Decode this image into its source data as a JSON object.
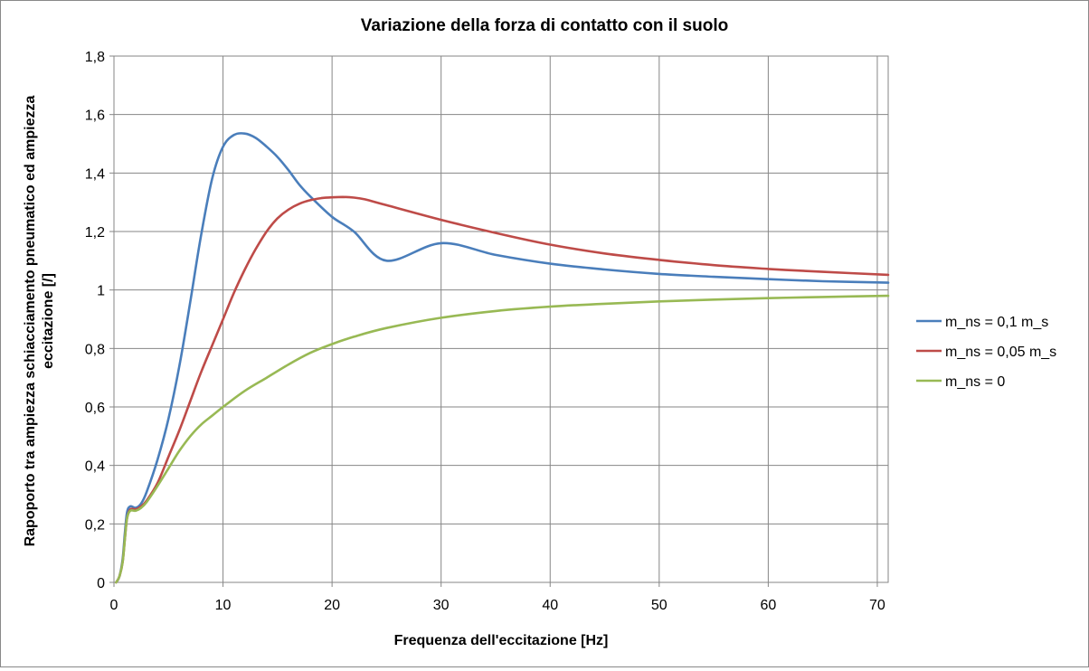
{
  "chart_data": {
    "type": "line",
    "title": "Variazione della forza di contatto con il suolo",
    "xlabel": "Frequenza dell'eccitazione  [Hz]",
    "ylabel_line1": "Rapoporto tra ampiezza schiacciamento  pneumatico ed ampiezza",
    "ylabel_line2": "eccitazione  [/]",
    "xlim": [
      0,
      71
    ],
    "ylim": [
      0,
      1.8
    ],
    "xticks": [
      {
        "value": 0,
        "label": "0"
      },
      {
        "value": 10,
        "label": "10"
      },
      {
        "value": 20,
        "label": "20"
      },
      {
        "value": 30,
        "label": "30"
      },
      {
        "value": 40,
        "label": "40"
      },
      {
        "value": 50,
        "label": "50"
      },
      {
        "value": 60,
        "label": "60"
      },
      {
        "value": 70,
        "label": "70"
      }
    ],
    "yticks": [
      {
        "value": 0,
        "label": "0"
      },
      {
        "value": 0.2,
        "label": "0,2"
      },
      {
        "value": 0.4,
        "label": "0,4"
      },
      {
        "value": 0.6,
        "label": "0,6"
      },
      {
        "value": 0.8,
        "label": "0,8"
      },
      {
        "value": 1.0,
        "label": "1"
      },
      {
        "value": 1.2,
        "label": "1,2"
      },
      {
        "value": 1.4,
        "label": "1,4"
      },
      {
        "value": 1.6,
        "label": "1,6"
      },
      {
        "value": 1.8,
        "label": "1,8"
      }
    ],
    "grid": true,
    "legend_position": "right",
    "series": [
      {
        "name": "m_ns = 0,1 m_s",
        "color": "#4a7ebb",
        "x": [
          0.2,
          0.5,
          0.8,
          1.0,
          1.2,
          1.5,
          2.0,
          2.5,
          3.0,
          4.0,
          5.0,
          6.0,
          7.0,
          8.0,
          9.0,
          10.0,
          11.0,
          12.0,
          13.0,
          14.0,
          15.0,
          16.0,
          17.0,
          18.0,
          20.0,
          22.0,
          25.0,
          30.0,
          35.0,
          40.0,
          45.0,
          50.0,
          55.0,
          60.0,
          65.0,
          71.0
        ],
        "y": [
          0.0,
          0.02,
          0.08,
          0.17,
          0.24,
          0.26,
          0.255,
          0.27,
          0.31,
          0.42,
          0.56,
          0.74,
          0.96,
          1.19,
          1.38,
          1.49,
          1.53,
          1.535,
          1.52,
          1.49,
          1.455,
          1.41,
          1.36,
          1.32,
          1.25,
          1.2,
          1.1,
          1.16,
          1.12,
          1.09,
          1.07,
          1.055,
          1.045,
          1.037,
          1.03,
          1.025
        ]
      },
      {
        "name": "m_ns = 0,05 m_s",
        "color": "#be4b48",
        "x": [
          0.2,
          0.5,
          0.8,
          1.0,
          1.2,
          1.5,
          2.0,
          2.5,
          3.0,
          4.0,
          5.0,
          6.0,
          7.0,
          8.0,
          9.0,
          10.0,
          11.0,
          12.0,
          13.0,
          14.0,
          15.0,
          16.0,
          17.0,
          18.0,
          19.0,
          20.0,
          21.0,
          22.0,
          23.0,
          25.0,
          30.0,
          35.0,
          40.0,
          45.0,
          50.0,
          55.0,
          60.0,
          65.0,
          71.0
        ],
        "y": [
          0.0,
          0.02,
          0.07,
          0.15,
          0.22,
          0.25,
          0.25,
          0.26,
          0.28,
          0.34,
          0.43,
          0.52,
          0.62,
          0.72,
          0.81,
          0.9,
          0.99,
          1.07,
          1.14,
          1.2,
          1.245,
          1.275,
          1.295,
          1.307,
          1.314,
          1.317,
          1.318,
          1.316,
          1.31,
          1.29,
          1.24,
          1.195,
          1.155,
          1.125,
          1.103,
          1.085,
          1.072,
          1.062,
          1.052
        ]
      },
      {
        "name": "m_ns = 0",
        "color": "#98b954",
        "x": [
          0.2,
          0.5,
          0.8,
          1.0,
          1.2,
          1.5,
          2.0,
          2.5,
          3.0,
          4.0,
          5.0,
          6.0,
          7.0,
          8.0,
          9.0,
          10.0,
          12.0,
          14.0,
          16.0,
          18.0,
          20.0,
          22.0,
          25.0,
          30.0,
          35.0,
          40.0,
          45.0,
          50.0,
          55.0,
          60.0,
          65.0,
          71.0
        ],
        "y": [
          0.0,
          0.02,
          0.07,
          0.15,
          0.22,
          0.245,
          0.245,
          0.255,
          0.275,
          0.33,
          0.39,
          0.45,
          0.5,
          0.54,
          0.57,
          0.6,
          0.655,
          0.7,
          0.745,
          0.785,
          0.815,
          0.84,
          0.87,
          0.905,
          0.928,
          0.943,
          0.953,
          0.961,
          0.967,
          0.972,
          0.976,
          0.98
        ]
      }
    ]
  }
}
